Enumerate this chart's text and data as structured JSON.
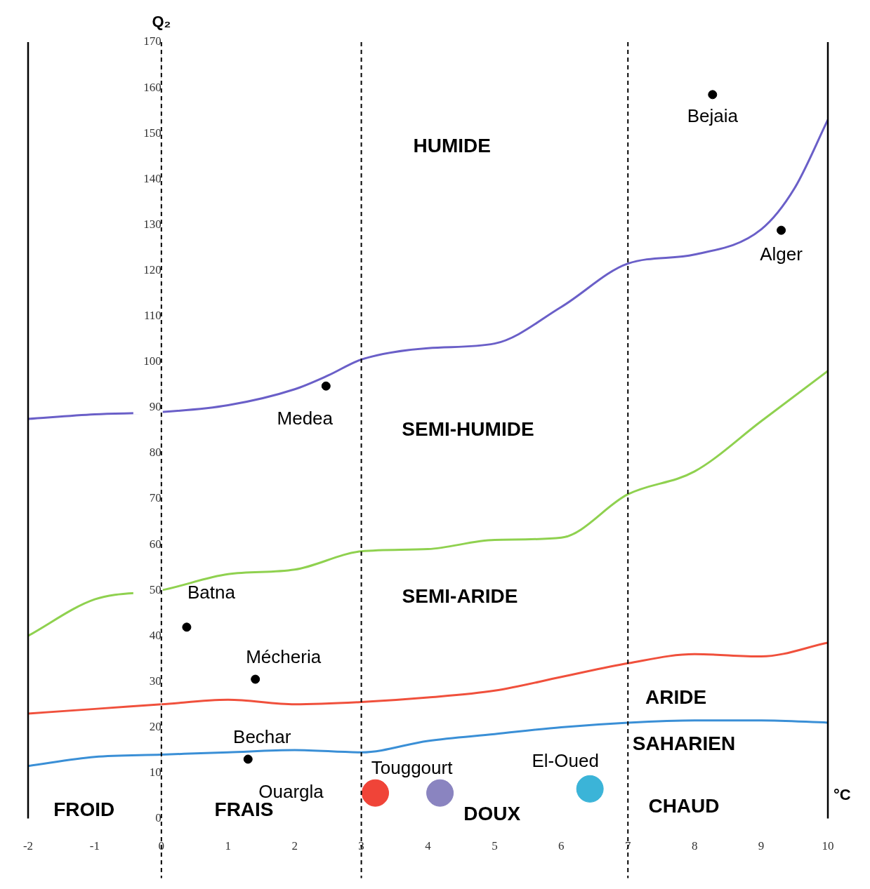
{
  "chart_data": {
    "type": "line",
    "xlabel": "°C",
    "ylabel": "Q₂",
    "xlim": [
      -2,
      10
    ],
    "xticks": [
      -2,
      -1,
      0,
      1,
      2,
      3,
      4,
      5,
      6,
      7,
      8,
      9,
      10
    ],
    "ylim": [
      0,
      170
    ],
    "yticks": [
      0,
      10,
      20,
      30,
      40,
      50,
      60,
      70,
      80,
      90,
      100,
      110,
      120,
      130,
      140,
      150,
      160,
      170
    ],
    "grid": false,
    "legend": false,
    "series": [
      {
        "color": "#6a5fc8",
        "x": [
          -2,
          -1,
          0,
          1,
          2,
          2.5,
          3,
          4,
          5,
          6,
          7,
          8,
          9,
          9.5,
          10
        ],
        "values": [
          87.5,
          88.5,
          89,
          90.5,
          94,
          97,
          100.5,
          103,
          104,
          112,
          121.5,
          123.5,
          129,
          138,
          153
        ]
      },
      {
        "color": "#8fd14f",
        "x": [
          -2,
          -1,
          0,
          1,
          2,
          3,
          4,
          5,
          6,
          7,
          8,
          9,
          10
        ],
        "values": [
          40,
          48,
          50,
          53.5,
          54.5,
          58.5,
          59,
          61,
          61.5,
          71,
          76,
          87,
          98
        ]
      },
      {
        "color": "#f0503c",
        "x": [
          -2,
          -1,
          0,
          1,
          2,
          3,
          4,
          5,
          6,
          7,
          8,
          9,
          10
        ],
        "values": [
          23,
          24,
          25,
          26,
          25,
          25.5,
          26.5,
          28,
          31,
          34,
          36,
          35.5,
          38.5
        ]
      },
      {
        "color": "#3a8fd6",
        "x": [
          -2,
          -1,
          0,
          1,
          2,
          3,
          4,
          5,
          6,
          7,
          8,
          9,
          10
        ],
        "values": [
          11.5,
          13.5,
          14,
          14.5,
          15,
          14.5,
          17,
          18.5,
          20,
          21,
          21.5,
          21.5,
          21
        ]
      },
      {
        "type": "scatter",
        "color": "#000000",
        "x": [
          8.27,
          9.3,
          2.47,
          0.38,
          1.41,
          1.3
        ],
        "values": [
          158.5,
          128.8,
          94.7,
          41.9,
          30.5,
          13
        ]
      },
      {
        "type": "scatter",
        "colors": [
          "#f04438",
          "#8a84c0",
          "#3bb4d8"
        ],
        "x": [
          3.21,
          4.18,
          6.43
        ],
        "values": [
          5.6,
          5.6,
          6.5
        ]
      }
    ],
    "ref_lines": [
      {
        "axis": "x",
        "value": 0,
        "color": "#000000",
        "line_style": "dashed"
      },
      {
        "axis": "x",
        "value": 3,
        "color": "#000000",
        "line_style": "dashed"
      },
      {
        "axis": "x",
        "value": 7,
        "color": "#000000",
        "line_style": "dashed"
      }
    ],
    "annotations": [
      {
        "text": "Bejaia",
        "x": 8.27,
        "y": 158.5
      },
      {
        "text": "Alger",
        "x": 9.3,
        "y": 128.8
      },
      {
        "text": "Medea",
        "x": 2.47,
        "y": 94.7
      },
      {
        "text": "Batna",
        "x": 0.38,
        "y": 41.9
      },
      {
        "text": "Mécheria",
        "x": 1.41,
        "y": 30.5
      },
      {
        "text": "Bechar",
        "x": 1.3,
        "y": 13
      },
      {
        "text": "Ouargla",
        "x": 3.21,
        "y": 5.6
      },
      {
        "text": "Touggourt",
        "x": 4.18,
        "y": 5.6
      },
      {
        "text": "El-Oued",
        "x": 6.43,
        "y": 6.5
      },
      "HUMIDE",
      "SEMI-HUMIDE",
      "SEMI-ARIDE",
      "ARIDE",
      "SAHARIEN",
      "FROID",
      "FRAIS",
      "DOUX",
      "CHAUD"
    ]
  }
}
